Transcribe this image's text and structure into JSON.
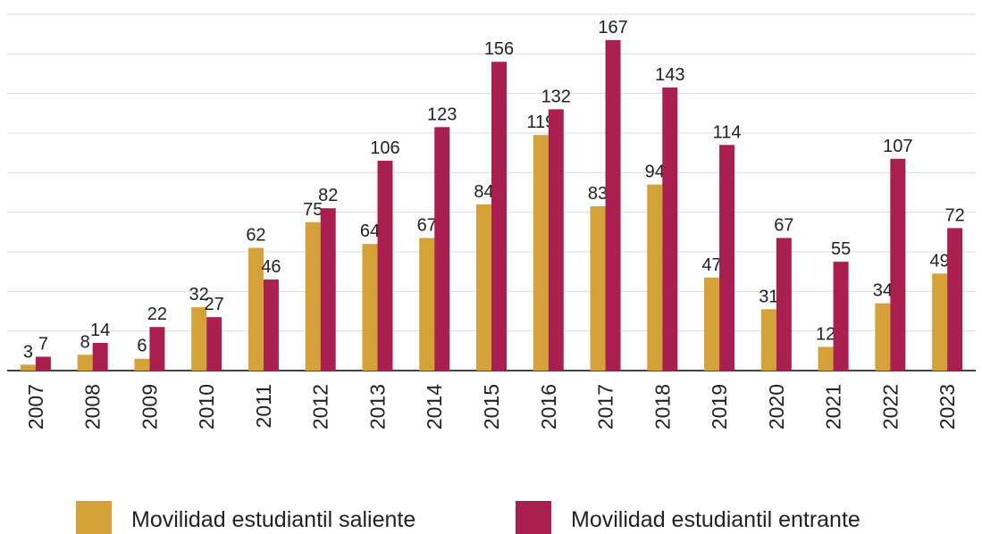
{
  "chart_data": {
    "type": "bar",
    "categories": [
      "2007",
      "2008",
      "2009",
      "2010",
      "2011",
      "2012",
      "2013",
      "2014",
      "2015",
      "2016",
      "2017",
      "2018",
      "2019",
      "2020",
      "2021",
      "2022",
      "2023"
    ],
    "series": [
      {
        "name": "Movilidad estudiantil saliente",
        "color": "#d5a139",
        "values": [
          3,
          8,
          6,
          32,
          62,
          75,
          64,
          67,
          84,
          119,
          83,
          94,
          47,
          31,
          12,
          34,
          49
        ]
      },
      {
        "name": "Movilidad estudiantil entrante",
        "color": "#a81f50",
        "values": [
          7,
          14,
          22,
          27,
          46,
          82,
          106,
          123,
          156,
          132,
          167,
          143,
          114,
          67,
          55,
          107,
          72
        ]
      }
    ],
    "ylim": [
      0,
      180
    ],
    "yticks": [
      0,
      20,
      40,
      60,
      80,
      100,
      120,
      140,
      160,
      180
    ],
    "grid": true,
    "legend": "bottom"
  }
}
